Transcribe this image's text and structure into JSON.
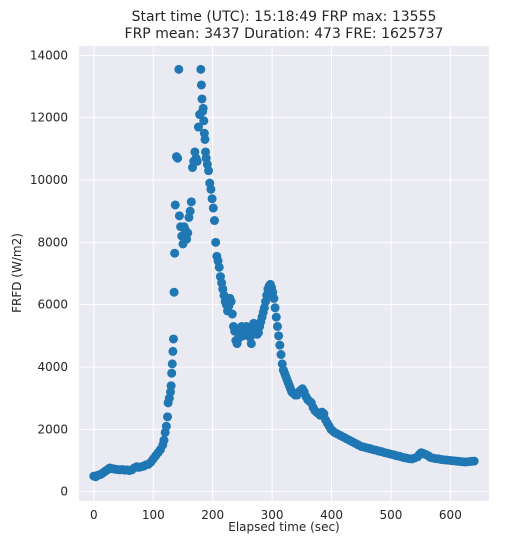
{
  "chart_data": {
    "type": "scatter",
    "title_lines": [
      "Start time (UTC): 15:18:49 FRP max: 13555",
      "FRP mean: 3437 Duration: 473 FRE: 1625737"
    ],
    "xlabel": "Elapsed time (sec)",
    "ylabel": "FRFD (W/m2)",
    "xlim": [
      -25,
      665
    ],
    "ylim": [
      -300,
      14300
    ],
    "xticks": [
      0,
      100,
      200,
      300,
      400,
      500,
      600
    ],
    "yticks": [
      0,
      2000,
      4000,
      6000,
      8000,
      10000,
      12000,
      14000
    ],
    "grid": true,
    "background": "#eaeaf2",
    "marker_color": "#1f77b4",
    "points": [
      [
        0,
        500
      ],
      [
        3,
        480
      ],
      [
        6,
        520
      ],
      [
        9,
        540
      ],
      [
        12,
        560
      ],
      [
        15,
        600
      ],
      [
        18,
        640
      ],
      [
        21,
        680
      ],
      [
        24,
        720
      ],
      [
        27,
        760
      ],
      [
        30,
        740
      ],
      [
        33,
        730
      ],
      [
        36,
        720
      ],
      [
        40,
        710
      ],
      [
        44,
        700
      ],
      [
        48,
        710
      ],
      [
        52,
        690
      ],
      [
        56,
        700
      ],
      [
        60,
        680
      ],
      [
        64,
        700
      ],
      [
        68,
        760
      ],
      [
        72,
        800
      ],
      [
        76,
        780
      ],
      [
        80,
        800
      ],
      [
        84,
        820
      ],
      [
        88,
        860
      ],
      [
        92,
        880
      ],
      [
        96,
        950
      ],
      [
        100,
        1050
      ],
      [
        104,
        1150
      ],
      [
        108,
        1250
      ],
      [
        112,
        1350
      ],
      [
        116,
        1500
      ],
      [
        118,
        1650
      ],
      [
        120,
        1900
      ],
      [
        122,
        2100
      ],
      [
        124,
        2400
      ],
      [
        125,
        2850
      ],
      [
        127,
        3000
      ],
      [
        129,
        3200
      ],
      [
        130,
        3400
      ],
      [
        131,
        3800
      ],
      [
        132,
        4100
      ],
      [
        133,
        4500
      ],
      [
        134,
        4900
      ],
      [
        135,
        6400
      ],
      [
        136,
        7650
      ],
      [
        137,
        9200
      ],
      [
        139,
        10750
      ],
      [
        141,
        10700
      ],
      [
        143,
        13550
      ],
      [
        144,
        8850
      ],
      [
        146,
        8500
      ],
      [
        148,
        8200
      ],
      [
        150,
        7950
      ],
      [
        152,
        8500
      ],
      [
        154,
        8400
      ],
      [
        156,
        8100
      ],
      [
        158,
        8300
      ],
      [
        160,
        8800
      ],
      [
        162,
        9000
      ],
      [
        164,
        9300
      ],
      [
        166,
        10400
      ],
      [
        168,
        10600
      ],
      [
        170,
        10900
      ],
      [
        172,
        10700
      ],
      [
        174,
        10600
      ],
      [
        176,
        11700
      ],
      [
        178,
        12100
      ],
      [
        180,
        13550
      ],
      [
        181,
        13050
      ],
      [
        182,
        12600
      ],
      [
        183,
        12200
      ],
      [
        184,
        12300
      ],
      [
        185,
        11900
      ],
      [
        186,
        11500
      ],
      [
        187,
        11300
      ],
      [
        188,
        10900
      ],
      [
        189,
        10700
      ],
      [
        191,
        10500
      ],
      [
        193,
        10300
      ],
      [
        195,
        9900
      ],
      [
        197,
        9700
      ],
      [
        199,
        9400
      ],
      [
        201,
        9100
      ],
      [
        203,
        8700
      ],
      [
        205,
        8000
      ],
      [
        207,
        7550
      ],
      [
        209,
        7400
      ],
      [
        211,
        7200
      ],
      [
        213,
        6900
      ],
      [
        215,
        6700
      ],
      [
        217,
        6500
      ],
      [
        219,
        6300
      ],
      [
        221,
        6100
      ],
      [
        223,
        6000
      ],
      [
        225,
        5800
      ],
      [
        227,
        5950
      ],
      [
        229,
        6200
      ],
      [
        231,
        6100
      ],
      [
        233,
        5700
      ],
      [
        235,
        5300
      ],
      [
        237,
        5150
      ],
      [
        239,
        4850
      ],
      [
        241,
        4750
      ],
      [
        243,
        4900
      ],
      [
        245,
        5100
      ],
      [
        247,
        5200
      ],
      [
        249,
        5300
      ],
      [
        251,
        5000
      ],
      [
        253,
        5050
      ],
      [
        255,
        5150
      ],
      [
        257,
        5300
      ],
      [
        259,
        5200
      ],
      [
        261,
        5100
      ],
      [
        263,
        4950
      ],
      [
        265,
        4750
      ],
      [
        267,
        5100
      ],
      [
        269,
        5400
      ],
      [
        271,
        5300
      ],
      [
        273,
        5200
      ],
      [
        275,
        5050
      ],
      [
        277,
        5100
      ],
      [
        279,
        5300
      ],
      [
        281,
        5450
      ],
      [
        283,
        5600
      ],
      [
        285,
        5750
      ],
      [
        287,
        5900
      ],
      [
        289,
        6100
      ],
      [
        291,
        6300
      ],
      [
        293,
        6500
      ],
      [
        295,
        6600
      ],
      [
        297,
        6650
      ],
      [
        299,
        6550
      ],
      [
        301,
        6400
      ],
      [
        303,
        6200
      ],
      [
        305,
        5900
      ],
      [
        307,
        5600
      ],
      [
        309,
        5300
      ],
      [
        311,
        5000
      ],
      [
        313,
        4700
      ],
      [
        315,
        4400
      ],
      [
        317,
        4100
      ],
      [
        319,
        3900
      ],
      [
        321,
        3800
      ],
      [
        323,
        3700
      ],
      [
        325,
        3600
      ],
      [
        327,
        3500
      ],
      [
        329,
        3400
      ],
      [
        331,
        3300
      ],
      [
        333,
        3200
      ],
      [
        336,
        3150
      ],
      [
        339,
        3100
      ],
      [
        342,
        3100
      ],
      [
        345,
        3200
      ],
      [
        348,
        3250
      ],
      [
        351,
        3300
      ],
      [
        354,
        3200
      ],
      [
        357,
        3050
      ],
      [
        360,
        2950
      ],
      [
        363,
        2900
      ],
      [
        366,
        2850
      ],
      [
        369,
        2700
      ],
      [
        372,
        2600
      ],
      [
        375,
        2550
      ],
      [
        378,
        2500
      ],
      [
        381,
        2450
      ],
      [
        384,
        2550
      ],
      [
        387,
        2500
      ],
      [
        390,
        2300
      ],
      [
        393,
        2200
      ],
      [
        396,
        2100
      ],
      [
        399,
        2000
      ],
      [
        402,
        1950
      ],
      [
        405,
        1900
      ],
      [
        410,
        1850
      ],
      [
        415,
        1800
      ],
      [
        420,
        1750
      ],
      [
        425,
        1700
      ],
      [
        430,
        1650
      ],
      [
        435,
        1600
      ],
      [
        440,
        1550
      ],
      [
        445,
        1500
      ],
      [
        450,
        1450
      ],
      [
        455,
        1430
      ],
      [
        460,
        1400
      ],
      [
        465,
        1380
      ],
      [
        470,
        1350
      ],
      [
        475,
        1330
      ],
      [
        480,
        1300
      ],
      [
        485,
        1280
      ],
      [
        490,
        1250
      ],
      [
        495,
        1230
      ],
      [
        500,
        1200
      ],
      [
        505,
        1180
      ],
      [
        510,
        1150
      ],
      [
        515,
        1130
      ],
      [
        520,
        1100
      ],
      [
        525,
        1080
      ],
      [
        530,
        1060
      ],
      [
        535,
        1050
      ],
      [
        540,
        1080
      ],
      [
        545,
        1120
      ],
      [
        548,
        1200
      ],
      [
        551,
        1250
      ],
      [
        554,
        1230
      ],
      [
        557,
        1200
      ],
      [
        560,
        1180
      ],
      [
        563,
        1150
      ],
      [
        566,
        1100
      ],
      [
        570,
        1080
      ],
      [
        575,
        1060
      ],
      [
        580,
        1050
      ],
      [
        585,
        1030
      ],
      [
        590,
        1020
      ],
      [
        595,
        1010
      ],
      [
        600,
        1000
      ],
      [
        605,
        990
      ],
      [
        610,
        980
      ],
      [
        615,
        970
      ],
      [
        620,
        960
      ],
      [
        625,
        950
      ],
      [
        630,
        960
      ],
      [
        635,
        970
      ],
      [
        640,
        980
      ]
    ]
  }
}
